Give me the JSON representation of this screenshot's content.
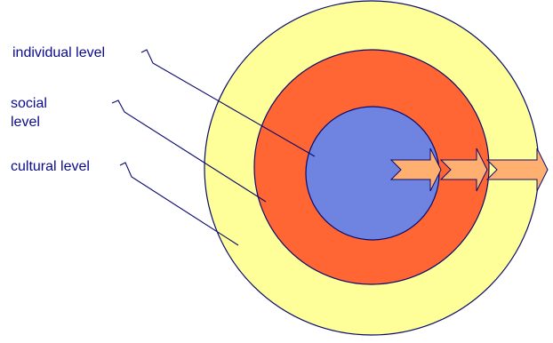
{
  "labels": {
    "individual": "individual level",
    "social": "social level",
    "cultural": "cultural level"
  },
  "colors": {
    "outer_ring": "#FFFF99",
    "middle_ring": "#FF6633",
    "inner_circle": "#6F84E0",
    "outline": "#0a0a6e",
    "arrow_fill": "#FFB070",
    "label_text": "#0a0a8c"
  }
}
